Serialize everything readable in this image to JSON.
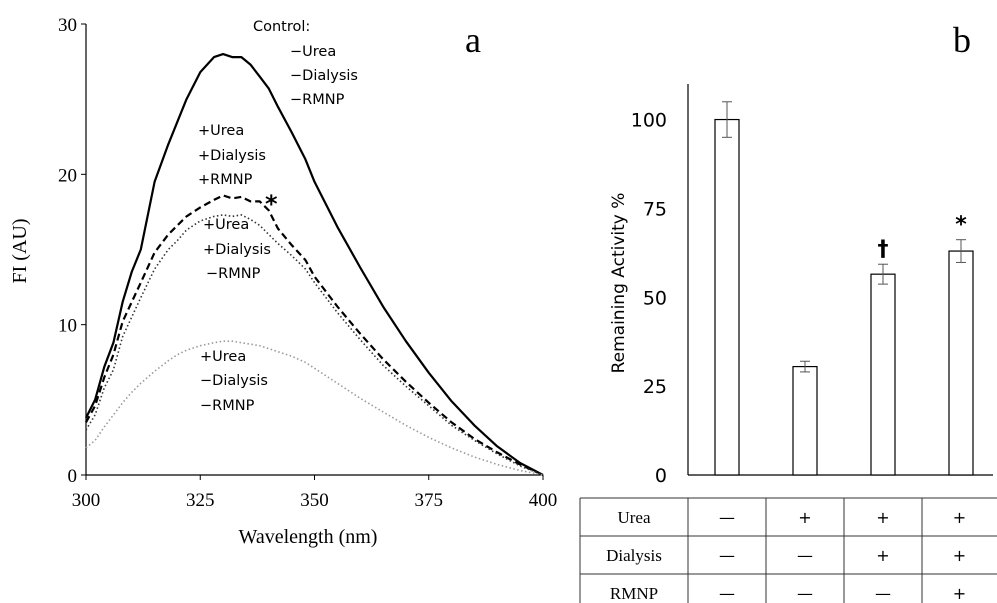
{
  "chart_data": [
    {
      "panel_label": "a",
      "type": "line",
      "xlabel": "Wavelength (nm)",
      "ylabel": "FI (AU)",
      "xlim": [
        300,
        400
      ],
      "ylim": [
        0,
        30
      ],
      "xticks": [
        300,
        325,
        350,
        375,
        400
      ],
      "yticks": [
        0,
        10,
        20,
        30
      ],
      "grid": false,
      "series": [
        {
          "style": "solid",
          "color": "#000000",
          "x": [
            300,
            302,
            304,
            306,
            308,
            310,
            312,
            315,
            318,
            320,
            322,
            325,
            328,
            330,
            332,
            334,
            336,
            338,
            340,
            342,
            345,
            348,
            350,
            355,
            360,
            365,
            370,
            375,
            380,
            385,
            390,
            395,
            400
          ],
          "y": [
            3.8,
            5.0,
            7.2,
            8.8,
            11.5,
            13.5,
            15.0,
            19.5,
            22.0,
            23.5,
            25.0,
            26.8,
            27.8,
            28.0,
            27.8,
            27.8,
            27.3,
            26.5,
            25.7,
            24.5,
            22.8,
            21.0,
            19.5,
            16.5,
            13.8,
            11.2,
            8.9,
            6.8,
            4.9,
            3.3,
            1.9,
            0.8,
            0.0
          ]
        },
        {
          "style": "dashed",
          "color": "#000000",
          "x": [
            300,
            302,
            304,
            306,
            308,
            310,
            312,
            315,
            318,
            320,
            322,
            325,
            328,
            330,
            332,
            334,
            336,
            338,
            340,
            342,
            345,
            348,
            350,
            355,
            360,
            365,
            370,
            375,
            380,
            385,
            390,
            395,
            400
          ],
          "y": [
            3.5,
            4.6,
            6.5,
            8.0,
            10.2,
            11.5,
            12.8,
            14.8,
            16.0,
            16.6,
            17.2,
            17.8,
            18.3,
            18.6,
            18.4,
            18.5,
            18.2,
            18.2,
            17.6,
            16.4,
            15.3,
            14.3,
            13.2,
            11.2,
            9.4,
            7.7,
            6.2,
            4.8,
            3.5,
            2.4,
            1.5,
            0.7,
            0.0
          ]
        },
        {
          "style": "dotted",
          "color": "#333333",
          "x": [
            300,
            302,
            304,
            306,
            308,
            310,
            312,
            315,
            318,
            320,
            322,
            325,
            328,
            330,
            332,
            334,
            336,
            338,
            340,
            342,
            345,
            348,
            350,
            355,
            360,
            365,
            370,
            375,
            380,
            385,
            390,
            395,
            400
          ],
          "y": [
            3.0,
            4.0,
            5.8,
            7.0,
            9.2,
            10.5,
            11.8,
            13.7,
            15.0,
            15.6,
            16.3,
            16.9,
            17.2,
            17.3,
            17.2,
            17.3,
            17.0,
            16.6,
            16.0,
            15.4,
            14.6,
            13.7,
            12.8,
            10.8,
            9.0,
            7.3,
            5.9,
            4.6,
            3.3,
            2.3,
            1.4,
            0.6,
            0.0
          ]
        },
        {
          "style": "dotted",
          "color": "#9a9a9a",
          "x": [
            300,
            302,
            304,
            306,
            308,
            310,
            312,
            315,
            318,
            320,
            322,
            325,
            328,
            330,
            332,
            334,
            336,
            338,
            340,
            342,
            345,
            348,
            350,
            355,
            360,
            365,
            370,
            375,
            380,
            385,
            390,
            395,
            400
          ],
          "y": [
            1.8,
            2.3,
            3.2,
            4.0,
            4.8,
            5.5,
            6.1,
            6.9,
            7.6,
            8.0,
            8.3,
            8.6,
            8.8,
            8.9,
            8.9,
            8.8,
            8.7,
            8.6,
            8.4,
            8.2,
            7.9,
            7.5,
            7.1,
            6.1,
            5.1,
            4.2,
            3.3,
            2.5,
            1.8,
            1.2,
            0.7,
            0.3,
            0.0
          ]
        }
      ],
      "annotations": [
        {
          "lines": [
            "Control:",
            "−Urea",
            "−Dialysis",
            "−RMNP"
          ]
        },
        {
          "lines": [
            "+Urea",
            "+Dialysis",
            "+RMNP"
          ]
        },
        {
          "lines": [
            "+Urea",
            "+Dialysis",
            "−RMNP"
          ]
        },
        {
          "lines": [
            "+Urea",
            "−Dialysis",
            "−RMNP"
          ]
        },
        {
          "lines": [
            "*"
          ]
        }
      ]
    },
    {
      "panel_label": "b",
      "type": "bar",
      "ylabel": "Remaining Activity %",
      "ylim": [
        0,
        110
      ],
      "yticks": [
        0,
        25,
        50,
        75,
        100
      ],
      "grid": false,
      "values": [
        100,
        30.5,
        56.5,
        63
      ],
      "errors": [
        5,
        1.5,
        2.8,
        3.2
      ],
      "bar_labels": [
        "",
        "",
        "†",
        "*"
      ],
      "table": {
        "row_labels": [
          "Urea",
          "Dialysis",
          "RMNP"
        ],
        "rows": [
          [
            "—",
            "+",
            "+",
            "+"
          ],
          [
            "—",
            "—",
            "+",
            "+"
          ],
          [
            "—",
            "—",
            "—",
            "+"
          ]
        ]
      }
    }
  ]
}
